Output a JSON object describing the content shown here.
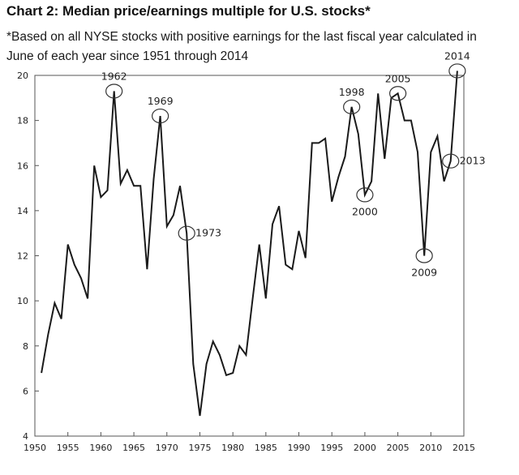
{
  "title": "Chart 2: Median price/earnings multiple for U.S. stocks*",
  "subtitle": "*Based on all NYSE stocks with positive earnings for the last fiscal year calculated in June of each year since 1951 through 2014",
  "chart_data": {
    "type": "line",
    "xlim": [
      1950,
      2015
    ],
    "ylim": [
      4,
      20
    ],
    "x_ticks": [
      1950,
      1955,
      1960,
      1965,
      1970,
      1975,
      1980,
      1985,
      1990,
      1995,
      2000,
      2005,
      2010,
      2015
    ],
    "y_ticks": [
      4,
      6,
      8,
      10,
      12,
      14,
      16,
      18,
      20
    ],
    "grid": false,
    "series": [
      {
        "color": "#1a1a1a",
        "x": [
          1951,
          1952,
          1953,
          1954,
          1955,
          1956,
          1957,
          1958,
          1959,
          1960,
          1961,
          1962,
          1963,
          1964,
          1965,
          1966,
          1967,
          1968,
          1969,
          1970,
          1971,
          1972,
          1973,
          1974,
          1975,
          1976,
          1977,
          1978,
          1979,
          1980,
          1981,
          1982,
          1983,
          1984,
          1985,
          1986,
          1987,
          1988,
          1989,
          1990,
          1991,
          1992,
          1993,
          1994,
          1995,
          1996,
          1997,
          1998,
          1999,
          2000,
          2001,
          2002,
          2003,
          2004,
          2005,
          2006,
          2007,
          2008,
          2009,
          2010,
          2011,
          2012,
          2013,
          2014
        ],
        "y": [
          6.8,
          8.5,
          9.9,
          9.2,
          12.5,
          11.6,
          11.0,
          10.1,
          16.0,
          14.6,
          14.9,
          19.3,
          15.2,
          15.8,
          15.1,
          15.1,
          11.4,
          15.4,
          18.2,
          13.3,
          13.8,
          15.1,
          13.0,
          7.2,
          4.9,
          7.2,
          8.2,
          7.6,
          6.7,
          6.8,
          8.0,
          7.6,
          10.1,
          12.5,
          10.1,
          13.4,
          14.2,
          11.6,
          11.4,
          13.1,
          11.9,
          17.0,
          17.0,
          17.2,
          14.4,
          15.5,
          16.4,
          18.6,
          17.4,
          14.7,
          15.3,
          19.2,
          16.3,
          19.0,
          19.2,
          18.0,
          18.0,
          16.6,
          12.0,
          16.6,
          17.3,
          15.3,
          16.2,
          20.2
        ]
      }
    ],
    "annotations": [
      {
        "label": "1962",
        "x": 1962,
        "y": 19.3,
        "text_pos": "above"
      },
      {
        "label": "1969",
        "x": 1969,
        "y": 18.2,
        "text_pos": "above"
      },
      {
        "label": "1973",
        "x": 1973,
        "y": 13.0,
        "text_pos": "right"
      },
      {
        "label": "1998",
        "x": 1998,
        "y": 18.6,
        "text_pos": "above"
      },
      {
        "label": "2000",
        "x": 2000,
        "y": 14.7,
        "text_pos": "below"
      },
      {
        "label": "2005",
        "x": 2005,
        "y": 19.2,
        "text_pos": "above"
      },
      {
        "label": "2009",
        "x": 2009,
        "y": 12.0,
        "text_pos": "below"
      },
      {
        "label": "2013",
        "x": 2013,
        "y": 16.2,
        "text_pos": "right"
      },
      {
        "label": "2014",
        "x": 2014,
        "y": 20.2,
        "text_pos": "above"
      }
    ]
  }
}
